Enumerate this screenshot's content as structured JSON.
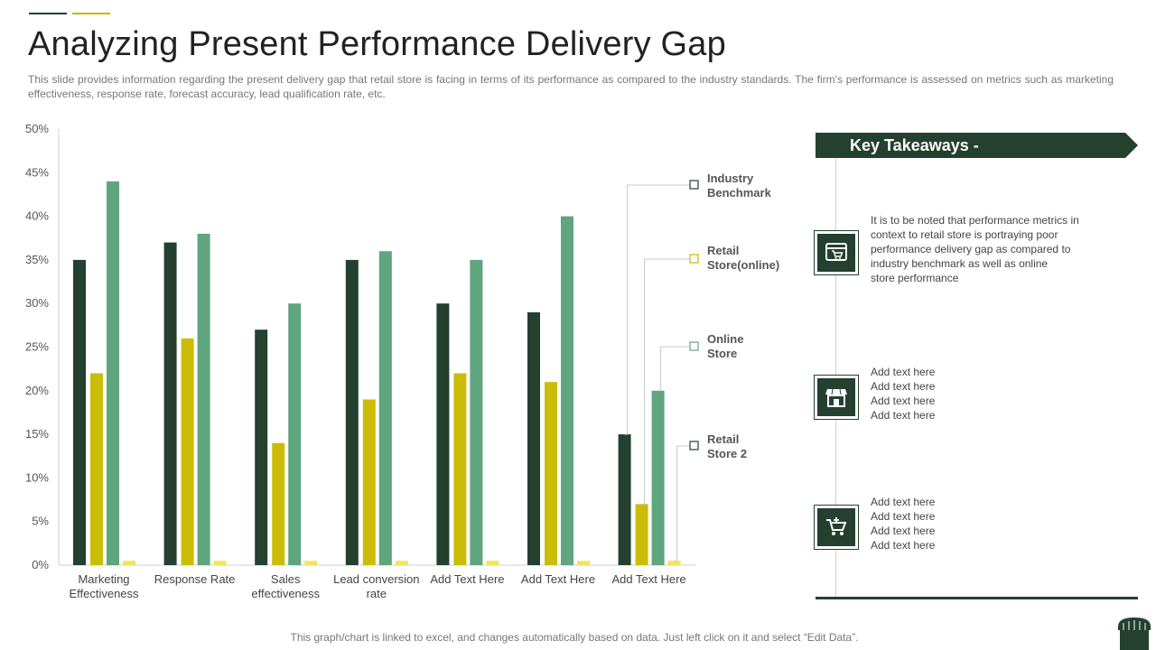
{
  "page": {
    "title": "Analyzing Present Performance Delivery Gap",
    "subtitle": "This slide provides information regarding the present delivery gap that retail store is facing in terms of its performance as compared to the industry standards. The firm's performance is assessed on metrics such as marketing effectiveness, response rate, forecast accuracy, lead qualification rate, etc.",
    "footer": "This graph/chart is linked to excel, and changes automatically based on data. Just left click on it and select “Edit Data”."
  },
  "colors": {
    "industry": "#24402f",
    "retail_online": "#cbbd07",
    "online_store": "#5fa57e",
    "retail_store2": "#f2e55c",
    "accent_dark": "#24402f"
  },
  "chart_data": {
    "type": "bar",
    "title": "",
    "xlabel": "",
    "ylabel": "",
    "ylim": [
      0,
      50
    ],
    "yticks": [
      "0%",
      "5%",
      "10%",
      "15%",
      "20%",
      "25%",
      "30%",
      "35%",
      "40%",
      "45%",
      "50%"
    ],
    "categories": [
      [
        "Marketing",
        "Effectiveness"
      ],
      [
        "Response Rate"
      ],
      [
        "Sales",
        "effectiveness"
      ],
      [
        "Lead conversion",
        "rate"
      ],
      [
        "Add Text Here"
      ],
      [
        "Add Text Here"
      ],
      [
        "Add Text Here"
      ]
    ],
    "series": [
      {
        "name": "Industry Benchmark",
        "label_lines": [
          "Industry",
          "Benchmark"
        ],
        "color": "#24402f",
        "values": [
          35,
          37,
          27,
          35,
          30,
          29,
          15
        ]
      },
      {
        "name": "Retail Store(online)",
        "label_lines": [
          "Retail",
          "Store(online)"
        ],
        "color": "#cbbd07",
        "values": [
          22,
          26,
          14,
          19,
          22,
          21,
          7
        ]
      },
      {
        "name": "Online Store",
        "label_lines": [
          "Online",
          "Store"
        ],
        "color": "#5fa57e",
        "values": [
          44,
          38,
          30,
          36,
          35,
          40,
          20
        ]
      },
      {
        "name": "Retail Store 2",
        "label_lines": [
          "Retail",
          "Store 2"
        ],
        "color": "#f2e55c",
        "values": [
          0.5,
          0.5,
          0.5,
          0.5,
          0.5,
          0.5,
          0.5
        ]
      }
    ],
    "legend_position": "right"
  },
  "takeaways": {
    "title": "Key Takeaways -",
    "items": [
      {
        "icon": "online-store-icon",
        "lines": [
          "It is to be noted that performance metrics in",
          "context to retail store is portraying poor",
          "performance delivery gap as compared to",
          "industry benchmark as well as online",
          "store performance"
        ]
      },
      {
        "icon": "storefront-icon",
        "lines": [
          "Add text here",
          "Add text here",
          "Add text here",
          "Add text here"
        ]
      },
      {
        "icon": "shopping-cart-icon",
        "lines": [
          "Add text here",
          "Add text here",
          "Add text here",
          "Add text here"
        ]
      }
    ]
  }
}
